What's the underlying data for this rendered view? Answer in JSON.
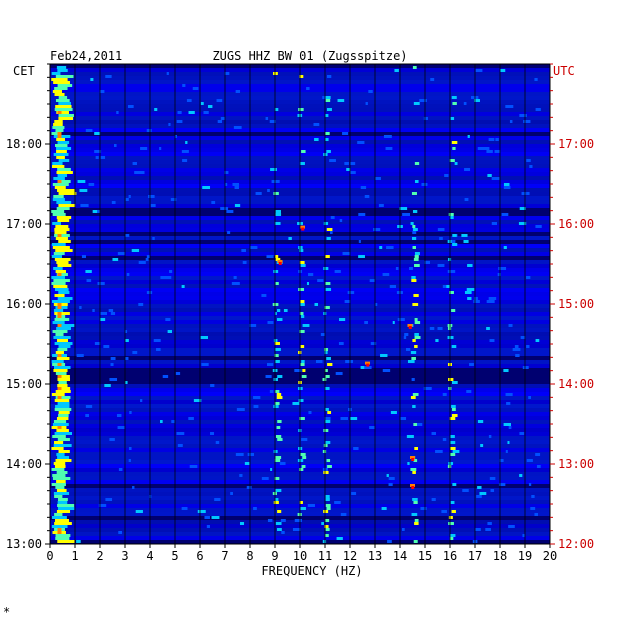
{
  "chart_data": {
    "type": "heatmap",
    "date": "Feb24,2011",
    "title": "ZUGS HHZ BW 01 (Zugsspitze)",
    "xlabel": "FREQUENCY (HZ)",
    "xlim": [
      0,
      20
    ],
    "x_ticks": [
      "0",
      "1",
      "2",
      "3",
      "4",
      "5",
      "6",
      "7",
      "8",
      "9",
      "10",
      "11",
      "12",
      "13",
      "14",
      "15",
      "16",
      "17",
      "18",
      "19",
      "20"
    ],
    "left_axis_title": "CET",
    "right_axis_title": "UTC",
    "left_ticks": [
      "18:00",
      "17:00",
      "16:00",
      "15:00",
      "14:00",
      "13:00"
    ],
    "right_ticks": [
      "17:00",
      "16:00",
      "15:00",
      "14:00",
      "13:00",
      "12:00"
    ],
    "time_range_cet": [
      "13:00",
      "18:50"
    ],
    "colormap": [
      "#00008b",
      "#0000ff",
      "#0050ff",
      "#00c8ff",
      "#50ffb0",
      "#ffff00",
      "#ff8000",
      "#ff0000"
    ],
    "notable_frequency_bands_hz": [
      0.3,
      9.0,
      10.0,
      11.0,
      14.5,
      16.0
    ],
    "grid": true
  },
  "footer_mark": "*"
}
